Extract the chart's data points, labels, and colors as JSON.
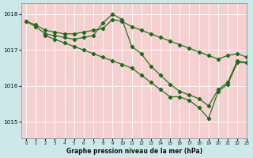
{
  "title": "Graphe pression niveau de la mer (hPa)",
  "background_color": "#cce8e8",
  "plot_bg_color": "#f5d0d0",
  "grid_color": "#ffffff",
  "line_color": "#1a6b1a",
  "xlim": [
    -0.5,
    23
  ],
  "ylim": [
    1014.55,
    1018.3
  ],
  "yticks": [
    1015,
    1016,
    1017,
    1018
  ],
  "xticks": [
    0,
    1,
    2,
    3,
    4,
    5,
    6,
    7,
    8,
    9,
    10,
    11,
    12,
    13,
    14,
    15,
    16,
    17,
    18,
    19,
    20,
    21,
    22,
    23
  ],
  "series": [
    {
      "x": [
        0,
        1,
        2,
        3,
        4,
        5,
        6,
        7,
        8,
        9,
        10,
        11,
        12,
        13,
        14,
        15,
        16,
        17,
        18,
        19,
        20,
        21,
        22,
        23
      ],
      "y": [
        1017.8,
        1017.7,
        1017.55,
        1017.5,
        1017.45,
        1017.45,
        1017.5,
        1017.55,
        1017.6,
        1017.85,
        1017.8,
        1017.65,
        1017.55,
        1017.45,
        1017.35,
        1017.25,
        1017.15,
        1017.05,
        1016.95,
        1016.85,
        1016.75,
        1016.85,
        1016.9,
        1016.8
      ]
    },
    {
      "x": [
        0,
        1,
        2,
        3,
        4,
        5,
        6,
        7,
        8,
        9,
        10,
        11,
        12,
        13,
        14,
        15,
        16,
        17,
        18,
        19,
        20,
        21,
        22,
        23
      ],
      "y": [
        1017.8,
        1017.65,
        1017.45,
        1017.4,
        1017.35,
        1017.3,
        1017.35,
        1017.4,
        1017.75,
        1018.0,
        1017.85,
        1017.1,
        1016.9,
        1016.55,
        1016.3,
        1016.05,
        1015.85,
        1015.75,
        1015.65,
        1015.45,
        1015.9,
        1016.1,
        1016.7,
        1016.65
      ]
    },
    {
      "x": [
        2,
        3,
        4,
        5,
        6,
        7,
        8,
        9,
        10,
        11,
        12,
        13,
        14,
        15,
        16,
        17,
        18,
        19,
        20,
        21,
        22,
        23
      ],
      "y": [
        1017.4,
        1017.3,
        1017.2,
        1017.1,
        1017.0,
        1016.9,
        1016.8,
        1016.7,
        1016.6,
        1016.5,
        1016.3,
        1016.1,
        1015.9,
        1015.7,
        1015.7,
        1015.6,
        1015.4,
        1015.1,
        1015.85,
        1016.05,
        1016.65,
        1016.65
      ]
    }
  ]
}
